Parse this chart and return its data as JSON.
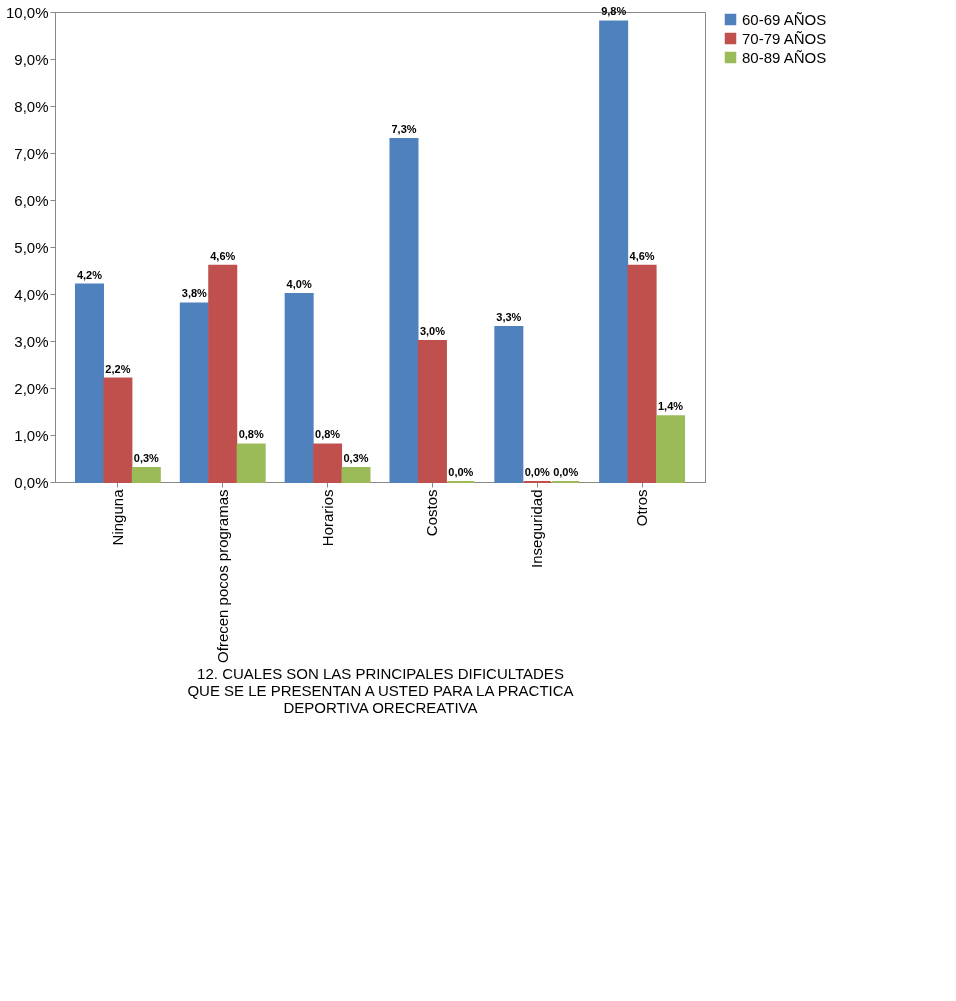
{
  "chart_data": {
    "type": "bar",
    "categories": [
      "Ninguna",
      "Ofrecen pocos programas",
      "Horarios",
      "Costos",
      "Inseguridad",
      "Otros"
    ],
    "series": [
      {
        "name": "60-69 AÑOS",
        "color": "#4f81bd",
        "values": [
          4.2,
          3.8,
          4.0,
          7.3,
          3.3,
          9.8
        ],
        "value_labels": [
          "4,2%",
          "3,8%",
          "4,0%",
          "7,3%",
          "3,3%",
          "9,8%"
        ]
      },
      {
        "name": "70-79 AÑOS",
        "color": "#c0504d",
        "values": [
          2.2,
          4.6,
          0.8,
          3.0,
          0.0,
          4.6
        ],
        "value_labels": [
          "2,2%",
          "4,6%",
          "0,8%",
          "3,0%",
          "0,0%",
          "4,6%"
        ]
      },
      {
        "name": "80-89 AÑOS",
        "color": "#9bbb59",
        "values": [
          0.3,
          0.8,
          0.3,
          0.0,
          0.0,
          1.4
        ],
        "value_labels": [
          "0,3%",
          "0,8%",
          "0,3%",
          "0,0%",
          "0,0%",
          "1,4%"
        ]
      }
    ],
    "xlabel": "12. CUALES SON LAS PRINCIPALES DIFICULTADES QUE SE LE PRESENTAN A USTED PARA LA PRACTICA DEPORTIVA ORECREATIVA",
    "ylim": [
      0,
      10
    ],
    "yticks": [
      {
        "value": 0,
        "label": "0,0%"
      },
      {
        "value": 1,
        "label": "1,0%"
      },
      {
        "value": 2,
        "label": "2,0%"
      },
      {
        "value": 3,
        "label": "3,0%"
      },
      {
        "value": 4,
        "label": "4,0%"
      },
      {
        "value": 5,
        "label": "5,0%"
      },
      {
        "value": 6,
        "label": "6,0%"
      },
      {
        "value": 7,
        "label": "7,0%"
      },
      {
        "value": 8,
        "label": "8,0%"
      },
      {
        "value": 9,
        "label": "9,0%"
      },
      {
        "value": 10,
        "label": "10,0%"
      }
    ],
    "grid": false,
    "legend": "right"
  }
}
